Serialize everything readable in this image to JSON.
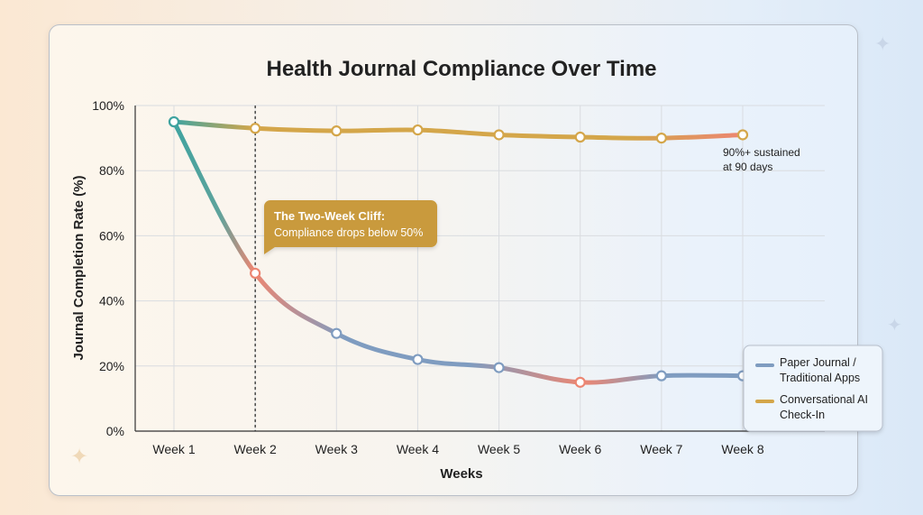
{
  "chart_data": {
    "type": "line",
    "title": "Health Journal Compliance Over Time",
    "xlabel": "Weeks",
    "ylabel": "Journal Completion Rate (%)",
    "categories": [
      "Week 1",
      "Week 2",
      "Week 3",
      "Week 4",
      "Week 5",
      "Week 6",
      "Week 7",
      "Week 8"
    ],
    "yticks": [
      "0%",
      "20%",
      "40%",
      "60%",
      "80%",
      "100%"
    ],
    "ylim": [
      0,
      100
    ],
    "grid": true,
    "legend_position": "bottom-right",
    "series": [
      {
        "name": "Paper Journal / Traditional Apps",
        "legend_lines": [
          "Paper Journal /",
          "Traditional Apps"
        ],
        "values": [
          95,
          48.5,
          30,
          22,
          19.5,
          15,
          17,
          17
        ],
        "color": "#7f9cc0"
      },
      {
        "name": "Conversational AI Check-In",
        "legend_lines": [
          "Conversational AI",
          "Check-In"
        ],
        "values": [
          95,
          93,
          92.2,
          92.5,
          91,
          90.3,
          90,
          91
        ],
        "color": "#d4a64a"
      }
    ],
    "annotations": {
      "cliff_title": "The Two-Week Cliff:",
      "cliff_text": "Compliance drops below 50%",
      "cliff_week": "Week 2",
      "sustained_line1": "90%+ sustained",
      "sustained_line2": "at 90 days"
    },
    "colors": {
      "teal": "#3fa3a0",
      "salmon": "#ec8672",
      "gold": "#d4a64a",
      "bluegrey": "#7f9cc0",
      "callout": "#c99a3c"
    }
  }
}
